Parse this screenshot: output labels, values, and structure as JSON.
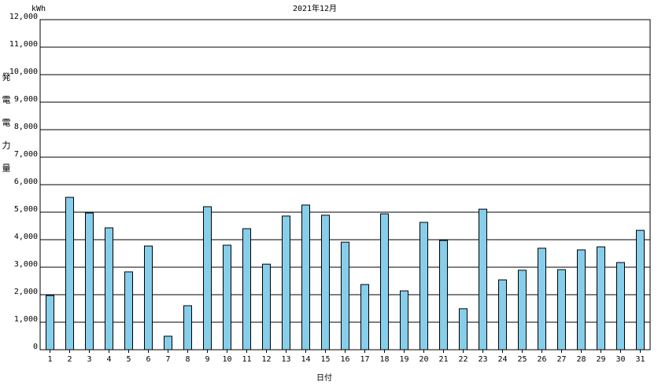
{
  "chart_data": {
    "type": "bar",
    "title": "2021年12月",
    "unit": "kWh",
    "y_label": "発電電力量",
    "x_label": "日付",
    "categories": [
      "1",
      "2",
      "3",
      "4",
      "5",
      "6",
      "7",
      "8",
      "9",
      "10",
      "11",
      "12",
      "13",
      "14",
      "15",
      "16",
      "17",
      "18",
      "19",
      "20",
      "21",
      "22",
      "23",
      "24",
      "25",
      "26",
      "27",
      "28",
      "29",
      "30",
      "31"
    ],
    "values": [
      1970,
      5540,
      4970,
      4430,
      2830,
      3770,
      490,
      1600,
      5200,
      3800,
      4400,
      3110,
      4860,
      5260,
      4890,
      3910,
      2370,
      4940,
      2140,
      4630,
      3970,
      1490,
      5110,
      2540,
      2890,
      3690,
      2910,
      3630,
      3740,
      3170,
      4340
    ],
    "color": "#87ceeb",
    "ylim": [
      0,
      12000
    ],
    "yticks": [
      0,
      {
        "value": 1000,
        "label": "1,000"
      },
      {
        "value": 2000,
        "label": "2,000"
      },
      {
        "value": 3000,
        "label": "3,000"
      },
      {
        "value": 4000,
        "label": "4,000"
      },
      {
        "value": 5000,
        "label": "5,000"
      },
      {
        "value": 6000,
        "label": "6,000"
      },
      {
        "value": 7000,
        "label": "7,000"
      },
      {
        "value": 8000,
        "label": "8,000"
      },
      {
        "value": 9000,
        "label": "9,000"
      },
      {
        "value": 10000,
        "label": "10,000"
      },
      {
        "value": 11000,
        "label": "11,000"
      },
      {
        "value": 12000,
        "label": "12,000"
      }
    ],
    "grid": true
  }
}
